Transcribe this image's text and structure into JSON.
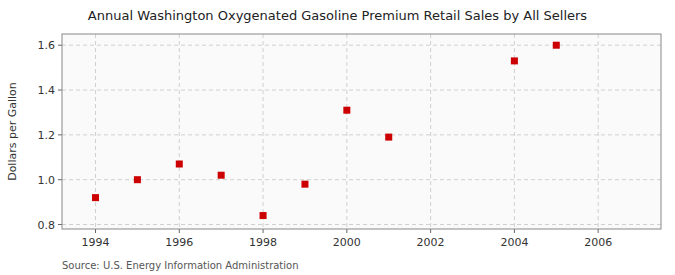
{
  "chart_data": {
    "type": "scatter",
    "title": "Annual Washington Oxygenated Gasoline Premium Retail Sales by All Sellers",
    "ylabel": "Dollars per Gallon",
    "source": "Source: U.S. Energy Information Administration",
    "x": [
      1994,
      1995,
      1996,
      1997,
      1998,
      1999,
      2000,
      2001,
      2004,
      2005
    ],
    "values": [
      0.92,
      1.0,
      1.07,
      1.02,
      0.84,
      0.98,
      1.31,
      1.19,
      1.53,
      1.6
    ],
    "xlim": [
      1993.2,
      2007.5
    ],
    "ylim": [
      0.78,
      1.65
    ],
    "xticks": [
      1994,
      1996,
      1998,
      2000,
      2002,
      2004,
      2006
    ],
    "yticks": [
      0.8,
      {
        "value": 1,
        "label": "1.0"
      },
      1.2,
      1.4,
      1.6
    ],
    "color": "#cc0000",
    "marker": "square",
    "grid": true
  }
}
